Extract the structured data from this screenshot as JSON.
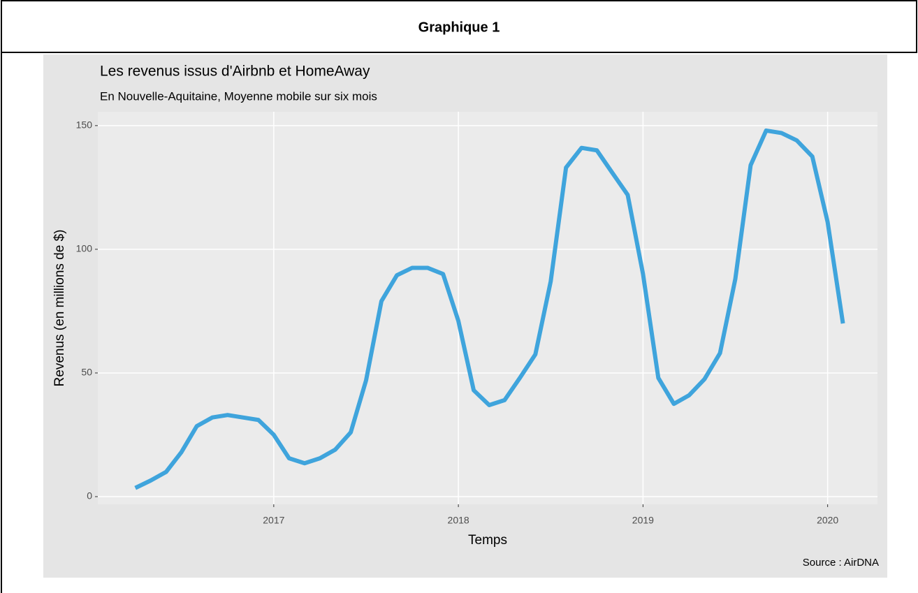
{
  "header": {
    "title": "Graphique 1"
  },
  "chart_data": {
    "type": "line",
    "title": "Les revenus issus d'Airbnb et HomeAway",
    "subtitle": "En Nouvelle-Aquitaine, Moyenne mobile sur six mois",
    "x_label": "Temps",
    "y_label": "Revenus (en millions de $)",
    "caption": "Source : AirDNA",
    "x": [
      2016.25,
      2016.333,
      2016.417,
      2016.5,
      2016.583,
      2016.667,
      2016.75,
      2016.833,
      2016.917,
      2017,
      2017.083,
      2017.167,
      2017.25,
      2017.333,
      2017.417,
      2017.5,
      2017.583,
      2017.667,
      2017.75,
      2017.833,
      2017.917,
      2018,
      2018.083,
      2018.167,
      2018.25,
      2018.333,
      2018.417,
      2018.5,
      2018.583,
      2018.667,
      2018.75,
      2018.833,
      2018.917,
      2019,
      2019.083,
      2019.167,
      2019.25,
      2019.333,
      2019.417,
      2019.5,
      2019.583,
      2019.667,
      2019.75,
      2019.833,
      2019.917,
      2020,
      2020.083
    ],
    "series": [
      {
        "color": "#3fa4dc",
        "values": [
          3.5,
          6.5,
          10,
          18,
          28.5,
          32,
          33,
          32,
          31,
          25,
          15.5,
          13.5,
          15.5,
          19,
          26,
          47,
          79,
          89.5,
          92.5,
          92.5,
          90,
          71,
          43,
          37,
          39,
          48,
          57.5,
          87,
          133,
          141,
          140,
          131,
          122,
          90,
          48,
          37.5,
          41,
          47.5,
          58,
          88,
          134,
          148,
          147,
          144,
          137.5,
          111,
          70
        ]
      }
    ],
    "xlim": [
      2016.047,
      2020.27
    ],
    "xticks": [
      2017,
      2018,
      2019,
      2020
    ],
    "ylim": [
      -3.1,
      155.6
    ],
    "yticks": [
      0,
      50,
      100,
      150
    ],
    "grid": true
  }
}
